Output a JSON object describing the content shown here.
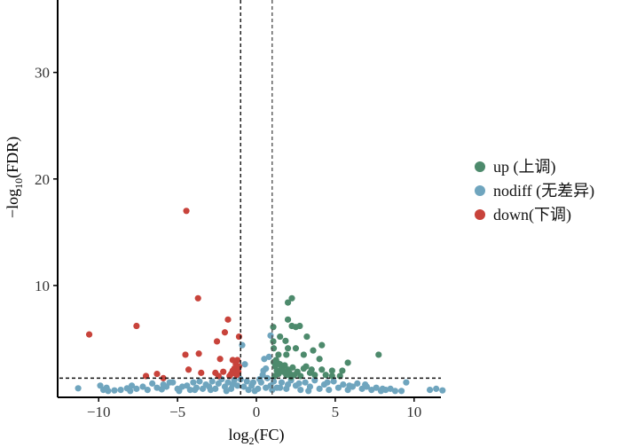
{
  "chart_data": {
    "type": "scatter",
    "title": "",
    "xlabel": {
      "base": "log",
      "sub": "2",
      "rest": "(FC)"
    },
    "ylabel": {
      "prefix": "−log",
      "sub": "10",
      "rest": "(FDR)"
    },
    "xlim": [
      -12.6,
      11.7
    ],
    "ylim": [
      -0.5,
      36.8
    ],
    "xticks": [
      -10,
      -5,
      0,
      5,
      10
    ],
    "xtick_labels": [
      "−10",
      "−5",
      "0",
      "5",
      "10"
    ],
    "yticks": [
      10,
      20,
      30
    ],
    "ytick_labels": [
      "10",
      "20",
      "30"
    ],
    "grid": false,
    "legend_position": "right",
    "thresholds": {
      "log2fc": [
        -1,
        1
      ],
      "neg_log10_fdr": 1.3
    },
    "series": [
      {
        "name": "up (上调)",
        "color": "#4d8a6c",
        "points": [
          [
            2.25,
            8.8
          ],
          [
            2.0,
            8.4
          ],
          [
            2.0,
            6.8
          ],
          [
            2.25,
            6.2
          ],
          [
            2.5,
            6.1
          ],
          [
            2.75,
            6.2
          ],
          [
            1.07,
            6.1
          ],
          [
            1.5,
            5.2
          ],
          [
            1.85,
            4.8
          ],
          [
            3.2,
            5.2
          ],
          [
            1.07,
            4.75
          ],
          [
            7.75,
            3.5
          ],
          [
            4.15,
            4.4
          ],
          [
            3.6,
            3.9
          ],
          [
            2.5,
            4.1
          ],
          [
            2.0,
            4.1
          ],
          [
            1.1,
            4.1
          ],
          [
            1.4,
            3.5
          ],
          [
            1.9,
            3.5
          ],
          [
            3.0,
            3.5
          ],
          [
            4.0,
            3.1
          ],
          [
            3.15,
            2.4
          ],
          [
            5.8,
            2.75
          ],
          [
            5.45,
            2.0
          ],
          [
            4.8,
            2.0
          ],
          [
            4.15,
            2.1
          ],
          [
            3.4,
            1.8
          ],
          [
            5.3,
            1.5
          ],
          [
            4.8,
            1.5
          ],
          [
            1.1,
            2.8
          ],
          [
            1.2,
            2.4
          ],
          [
            1.3,
            2.0
          ],
          [
            1.4,
            1.7
          ],
          [
            1.5,
            2.6
          ],
          [
            1.6,
            2.2
          ],
          [
            1.7,
            1.9
          ],
          [
            1.8,
            2.5
          ],
          [
            1.9,
            1.6
          ],
          [
            2.0,
            2.1
          ],
          [
            2.1,
            1.8
          ],
          [
            2.3,
            2.3
          ],
          [
            2.4,
            1.6
          ],
          [
            2.6,
            1.9
          ],
          [
            2.8,
            1.5
          ],
          [
            3.0,
            2.2
          ],
          [
            1.15,
            1.5
          ],
          [
            1.25,
            3.0
          ],
          [
            1.35,
            2.7
          ],
          [
            2.2,
            1.4
          ],
          [
            3.5,
            2.1
          ],
          [
            3.7,
            1.6
          ],
          [
            4.4,
            1.6
          ]
        ]
      },
      {
        "name": "nodiff (无差异)",
        "color": "#6fa5be",
        "points": [
          [
            -11.3,
            0.35
          ],
          [
            -9.9,
            0.6
          ],
          [
            -9.7,
            0.2
          ],
          [
            -9.4,
            0.1
          ],
          [
            -9.0,
            0.15
          ],
          [
            -8.6,
            0.2
          ],
          [
            -8.2,
            0.35
          ],
          [
            -7.9,
            0.6
          ],
          [
            -7.6,
            0.3
          ],
          [
            -7.2,
            0.5
          ],
          [
            -6.9,
            0.2
          ],
          [
            -6.6,
            0.8
          ],
          [
            -6.3,
            0.4
          ],
          [
            -6.0,
            0.25
          ],
          [
            -5.7,
            0.5
          ],
          [
            -5.5,
            0.9
          ],
          [
            -5.3,
            0.9
          ],
          [
            -5.0,
            0.3
          ],
          [
            -4.7,
            0.5
          ],
          [
            -4.4,
            0.6
          ],
          [
            -4.2,
            0.2
          ],
          [
            -4.0,
            0.9
          ],
          [
            -3.8,
            0.4
          ],
          [
            -3.6,
            1.0
          ],
          [
            -3.4,
            0.3
          ],
          [
            -3.2,
            0.7
          ],
          [
            -3.0,
            0.5
          ],
          [
            -2.8,
            1.0
          ],
          [
            -2.6,
            0.3
          ],
          [
            -2.4,
            0.8
          ],
          [
            -2.2,
            1.2
          ],
          [
            -2.0,
            0.5
          ],
          [
            -1.8,
            0.9
          ],
          [
            -1.6,
            0.3
          ],
          [
            -1.4,
            1.1
          ],
          [
            -1.2,
            0.6
          ],
          [
            -1.0,
            1.2
          ],
          [
            -0.9,
            4.4
          ],
          [
            -0.73,
            2.6
          ],
          [
            -0.8,
            0.5
          ],
          [
            -0.6,
            1.0
          ],
          [
            -0.5,
            0.2
          ],
          [
            -0.3,
            0.6
          ],
          [
            -0.1,
            0.1
          ],
          [
            0.1,
            0.3
          ],
          [
            0.3,
            0.9
          ],
          [
            0.4,
            1.6
          ],
          [
            0.5,
            3.1
          ],
          [
            0.6,
            2.2
          ],
          [
            0.7,
            1.3
          ],
          [
            0.8,
            3.3
          ],
          [
            0.9,
            5.3
          ],
          [
            0.9,
            0.6
          ],
          [
            1.1,
            1.0
          ],
          [
            1.3,
            0.4
          ],
          [
            1.6,
            0.9
          ],
          [
            1.9,
            0.3
          ],
          [
            2.2,
            1.1
          ],
          [
            2.5,
            0.6
          ],
          [
            2.8,
            0.2
          ],
          [
            3.1,
            0.9
          ],
          [
            3.4,
            0.5
          ],
          [
            3.7,
            1.1
          ],
          [
            4.0,
            0.3
          ],
          [
            4.3,
            0.7
          ],
          [
            4.6,
            0.2
          ],
          [
            4.9,
            1.0
          ],
          [
            5.2,
            0.4
          ],
          [
            5.5,
            0.7
          ],
          [
            5.8,
            0.2
          ],
          [
            6.1,
            0.5
          ],
          [
            6.4,
            0.8
          ],
          [
            6.7,
            0.3
          ],
          [
            7.0,
            0.5
          ],
          [
            7.3,
            0.2
          ],
          [
            7.6,
            0.4
          ],
          [
            7.9,
            0.1
          ],
          [
            8.2,
            0.2
          ],
          [
            8.5,
            0.3
          ],
          [
            8.8,
            0.1
          ],
          [
            9.2,
            0.1
          ],
          [
            9.5,
            0.9
          ],
          [
            11.0,
            0.2
          ],
          [
            11.4,
            0.3
          ],
          [
            11.8,
            0.15
          ],
          [
            -9.5,
            0.4
          ],
          [
            -8.0,
            0.1
          ],
          [
            -5.9,
            0.7
          ],
          [
            -4.9,
            0.1
          ],
          [
            -3.9,
            0.2
          ],
          [
            -2.9,
            0.2
          ],
          [
            -1.9,
            0.1
          ],
          [
            -1.5,
            0.7
          ],
          [
            -0.2,
            0.9
          ],
          [
            0.2,
            1.2
          ],
          [
            0.45,
            2.0
          ],
          [
            0.6,
            0.4
          ],
          [
            1.0,
            0.2
          ],
          [
            1.5,
            0.4
          ],
          [
            2.0,
            0.7
          ],
          [
            2.7,
            0.8
          ],
          [
            3.3,
            0.1
          ],
          [
            4.5,
            0.9
          ],
          [
            5.9,
            0.6
          ],
          [
            6.9,
            0.7
          ],
          [
            8.0,
            0.3
          ]
        ]
      },
      {
        "name": "down(下调)",
        "color": "#c8433b",
        "points": [
          [
            -4.44,
            17.0
          ],
          [
            -3.7,
            8.8
          ],
          [
            -7.6,
            6.2
          ],
          [
            -10.6,
            5.4
          ],
          [
            -1.8,
            6.8
          ],
          [
            -2.0,
            5.6
          ],
          [
            -2.5,
            4.75
          ],
          [
            -1.1,
            5.2
          ],
          [
            -4.5,
            3.5
          ],
          [
            -3.65,
            3.6
          ],
          [
            -2.3,
            3.1
          ],
          [
            -1.5,
            3.0
          ],
          [
            -4.3,
            2.1
          ],
          [
            -3.5,
            1.8
          ],
          [
            -6.3,
            1.7
          ],
          [
            -7.0,
            1.5
          ],
          [
            -5.9,
            1.3
          ],
          [
            -2.6,
            1.8
          ],
          [
            -2.1,
            1.9
          ],
          [
            -1.2,
            3.0
          ],
          [
            -1.3,
            2.6
          ],
          [
            -1.4,
            2.2
          ],
          [
            -1.15,
            1.9
          ],
          [
            -1.25,
            1.6
          ],
          [
            -1.5,
            2.0
          ],
          [
            -1.35,
            2.9
          ],
          [
            -1.6,
            1.7
          ],
          [
            -1.1,
            2.4
          ],
          [
            -1.7,
            1.5
          ],
          [
            -2.4,
            1.5
          ]
        ]
      }
    ]
  }
}
